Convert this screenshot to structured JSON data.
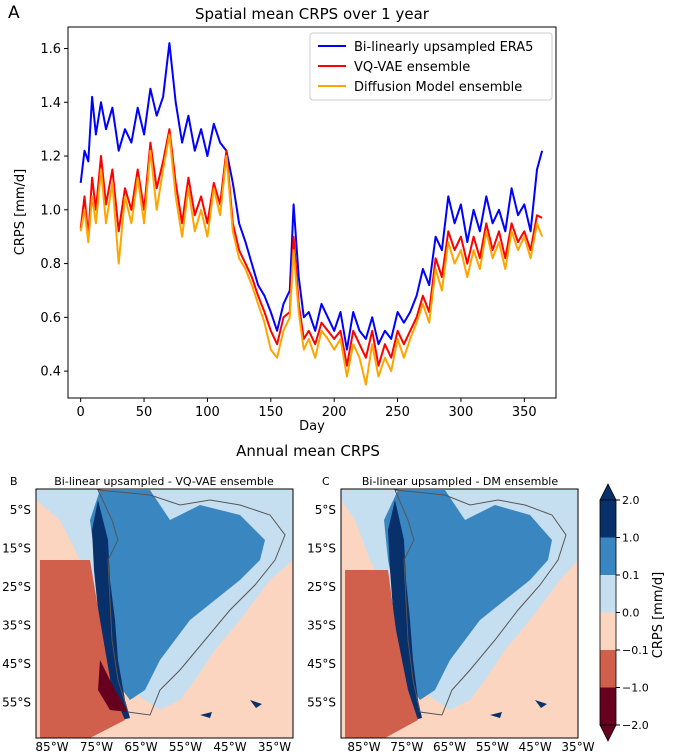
{
  "panel_a": {
    "letter": "A",
    "chart_data": {
      "type": "line",
      "title": "Spatial mean CRPS over 1 year",
      "xlabel": "Day",
      "ylabel": "CRPS [mm/d]",
      "xlim": [
        -10,
        375
      ],
      "ylim": [
        0.3,
        1.68
      ],
      "xticks": [
        0,
        50,
        100,
        150,
        200,
        250,
        300,
        350
      ],
      "yticks": [
        0.4,
        0.6,
        0.8,
        1.0,
        1.2,
        1.4,
        1.6
      ],
      "ytick_labels": [
        "0.4",
        "0.6",
        "0.8",
        "1.0",
        "1.2",
        "1.4",
        "1.6"
      ],
      "legend_position": "top-right",
      "grid": false,
      "series": [
        {
          "name": "Bi-linearly upsampled ERA5",
          "color": "#0000ff",
          "points": [
            [
              0,
              1.1
            ],
            [
              3,
              1.22
            ],
            [
              6,
              1.18
            ],
            [
              9,
              1.42
            ],
            [
              12,
              1.28
            ],
            [
              16,
              1.4
            ],
            [
              20,
              1.3
            ],
            [
              25,
              1.38
            ],
            [
              30,
              1.22
            ],
            [
              35,
              1.3
            ],
            [
              40,
              1.25
            ],
            [
              45,
              1.38
            ],
            [
              50,
              1.28
            ],
            [
              55,
              1.45
            ],
            [
              60,
              1.35
            ],
            [
              65,
              1.42
            ],
            [
              70,
              1.62
            ],
            [
              75,
              1.4
            ],
            [
              80,
              1.25
            ],
            [
              85,
              1.35
            ],
            [
              90,
              1.22
            ],
            [
              95,
              1.3
            ],
            [
              100,
              1.2
            ],
            [
              105,
              1.32
            ],
            [
              110,
              1.25
            ],
            [
              115,
              1.22
            ],
            [
              120,
              1.1
            ],
            [
              125,
              0.95
            ],
            [
              130,
              0.88
            ],
            [
              135,
              0.8
            ],
            [
              140,
              0.72
            ],
            [
              145,
              0.68
            ],
            [
              150,
              0.62
            ],
            [
              155,
              0.55
            ],
            [
              160,
              0.65
            ],
            [
              165,
              0.7
            ],
            [
              168,
              1.02
            ],
            [
              172,
              0.75
            ],
            [
              176,
              0.6
            ],
            [
              180,
              0.62
            ],
            [
              185,
              0.55
            ],
            [
              190,
              0.65
            ],
            [
              195,
              0.6
            ],
            [
              200,
              0.55
            ],
            [
              205,
              0.62
            ],
            [
              210,
              0.48
            ],
            [
              215,
              0.62
            ],
            [
              220,
              0.55
            ],
            [
              225,
              0.52
            ],
            [
              230,
              0.6
            ],
            [
              235,
              0.5
            ],
            [
              240,
              0.55
            ],
            [
              245,
              0.52
            ],
            [
              250,
              0.62
            ],
            [
              255,
              0.58
            ],
            [
              260,
              0.62
            ],
            [
              265,
              0.68
            ],
            [
              270,
              0.78
            ],
            [
              275,
              0.72
            ],
            [
              280,
              0.9
            ],
            [
              285,
              0.85
            ],
            [
              290,
              1.05
            ],
            [
              295,
              0.95
            ],
            [
              300,
              1.02
            ],
            [
              305,
              0.88
            ],
            [
              310,
              1.0
            ],
            [
              315,
              0.92
            ],
            [
              320,
              1.05
            ],
            [
              325,
              0.95
            ],
            [
              330,
              1.0
            ],
            [
              335,
              0.92
            ],
            [
              340,
              1.08
            ],
            [
              345,
              0.98
            ],
            [
              350,
              1.02
            ],
            [
              355,
              0.92
            ],
            [
              360,
              1.15
            ],
            [
              364,
              1.22
            ]
          ]
        },
        {
          "name": "VQ-VAE ensemble",
          "color": "#ff0000",
          "points": [
            [
              0,
              0.93
            ],
            [
              3,
              1.05
            ],
            [
              6,
              0.9
            ],
            [
              9,
              1.12
            ],
            [
              12,
              1.0
            ],
            [
              16,
              1.2
            ],
            [
              20,
              1.02
            ],
            [
              25,
              1.15
            ],
            [
              30,
              0.92
            ],
            [
              35,
              1.08
            ],
            [
              40,
              1.0
            ],
            [
              45,
              1.15
            ],
            [
              50,
              1.0
            ],
            [
              55,
              1.25
            ],
            [
              60,
              1.08
            ],
            [
              65,
              1.18
            ],
            [
              70,
              1.3
            ],
            [
              75,
              1.1
            ],
            [
              80,
              0.95
            ],
            [
              85,
              1.12
            ],
            [
              90,
              0.98
            ],
            [
              95,
              1.05
            ],
            [
              100,
              0.95
            ],
            [
              105,
              1.1
            ],
            [
              110,
              1.02
            ],
            [
              115,
              1.22
            ],
            [
              120,
              0.95
            ],
            [
              125,
              0.85
            ],
            [
              130,
              0.8
            ],
            [
              135,
              0.75
            ],
            [
              140,
              0.68
            ],
            [
              145,
              0.62
            ],
            [
              150,
              0.55
            ],
            [
              155,
              0.5
            ],
            [
              160,
              0.6
            ],
            [
              165,
              0.62
            ],
            [
              168,
              0.9
            ],
            [
              172,
              0.65
            ],
            [
              176,
              0.52
            ],
            [
              180,
              0.55
            ],
            [
              185,
              0.5
            ],
            [
              190,
              0.58
            ],
            [
              195,
              0.55
            ],
            [
              200,
              0.52
            ],
            [
              205,
              0.55
            ],
            [
              210,
              0.42
            ],
            [
              215,
              0.55
            ],
            [
              220,
              0.5
            ],
            [
              225,
              0.45
            ],
            [
              230,
              0.55
            ],
            [
              235,
              0.42
            ],
            [
              240,
              0.5
            ],
            [
              245,
              0.45
            ],
            [
              250,
              0.55
            ],
            [
              255,
              0.5
            ],
            [
              260,
              0.55
            ],
            [
              265,
              0.6
            ],
            [
              270,
              0.68
            ],
            [
              275,
              0.62
            ],
            [
              280,
              0.82
            ],
            [
              285,
              0.75
            ],
            [
              290,
              0.92
            ],
            [
              295,
              0.85
            ],
            [
              300,
              0.9
            ],
            [
              305,
              0.8
            ],
            [
              310,
              0.9
            ],
            [
              315,
              0.82
            ],
            [
              320,
              0.95
            ],
            [
              325,
              0.85
            ],
            [
              330,
              0.92
            ],
            [
              335,
              0.82
            ],
            [
              340,
              0.95
            ],
            [
              345,
              0.88
            ],
            [
              350,
              0.92
            ],
            [
              355,
              0.85
            ],
            [
              360,
              0.98
            ],
            [
              364,
              0.97
            ]
          ]
        },
        {
          "name": "Diffusion Model ensemble",
          "color": "#ffa500",
          "points": [
            [
              0,
              0.92
            ],
            [
              3,
              1.0
            ],
            [
              6,
              0.88
            ],
            [
              9,
              1.05
            ],
            [
              12,
              0.95
            ],
            [
              16,
              1.15
            ],
            [
              20,
              0.95
            ],
            [
              25,
              1.1
            ],
            [
              30,
              0.8
            ],
            [
              35,
              1.05
            ],
            [
              40,
              0.95
            ],
            [
              45,
              1.12
            ],
            [
              50,
              0.95
            ],
            [
              55,
              1.22
            ],
            [
              60,
              1.0
            ],
            [
              65,
              1.15
            ],
            [
              70,
              1.28
            ],
            [
              75,
              1.05
            ],
            [
              80,
              0.9
            ],
            [
              85,
              1.08
            ],
            [
              90,
              0.92
            ],
            [
              95,
              1.0
            ],
            [
              100,
              0.9
            ],
            [
              105,
              1.08
            ],
            [
              110,
              0.98
            ],
            [
              115,
              1.2
            ],
            [
              120,
              0.92
            ],
            [
              125,
              0.82
            ],
            [
              130,
              0.78
            ],
            [
              135,
              0.72
            ],
            [
              140,
              0.65
            ],
            [
              145,
              0.58
            ],
            [
              150,
              0.48
            ],
            [
              155,
              0.45
            ],
            [
              160,
              0.55
            ],
            [
              165,
              0.6
            ],
            [
              168,
              0.85
            ],
            [
              172,
              0.62
            ],
            [
              176,
              0.48
            ],
            [
              180,
              0.52
            ],
            [
              185,
              0.45
            ],
            [
              190,
              0.55
            ],
            [
              195,
              0.52
            ],
            [
              200,
              0.48
            ],
            [
              205,
              0.52
            ],
            [
              210,
              0.38
            ],
            [
              215,
              0.5
            ],
            [
              220,
              0.45
            ],
            [
              225,
              0.35
            ],
            [
              230,
              0.5
            ],
            [
              235,
              0.38
            ],
            [
              240,
              0.45
            ],
            [
              245,
              0.4
            ],
            [
              250,
              0.52
            ],
            [
              255,
              0.45
            ],
            [
              260,
              0.52
            ],
            [
              265,
              0.58
            ],
            [
              270,
              0.65
            ],
            [
              275,
              0.58
            ],
            [
              280,
              0.78
            ],
            [
              285,
              0.7
            ],
            [
              290,
              0.88
            ],
            [
              295,
              0.8
            ],
            [
              300,
              0.85
            ],
            [
              305,
              0.75
            ],
            [
              310,
              0.85
            ],
            [
              315,
              0.78
            ],
            [
              320,
              0.92
            ],
            [
              325,
              0.82
            ],
            [
              330,
              0.88
            ],
            [
              335,
              0.78
            ],
            [
              340,
              0.92
            ],
            [
              345,
              0.85
            ],
            [
              350,
              0.9
            ],
            [
              355,
              0.82
            ],
            [
              360,
              0.95
            ],
            [
              364,
              0.9
            ]
          ]
        }
      ]
    }
  },
  "maps_title": "Annual mean CRPS",
  "panel_b": {
    "letter": "B",
    "title": "Bi-linear upsampled - VQ-VAE ensemble"
  },
  "panel_c": {
    "letter": "C",
    "title": "Bi-linear upsampled - DM ensemble"
  },
  "map_axes": {
    "lat_labels": [
      "5°S",
      "15°S",
      "25°S",
      "35°S",
      "45°S",
      "55°S"
    ],
    "lon_labels": [
      "85°W",
      "75°W",
      "65°W",
      "55°W",
      "45°W",
      "35°W"
    ]
  },
  "colorbar": {
    "label": "CRPS [mm/d]",
    "ticks": [
      "2.0",
      "1.0",
      "0.1",
      "0.0",
      "−0.1",
      "−1.0",
      "−2.0"
    ],
    "bins": [
      {
        "range": "1.0 to 2.0",
        "color": "#08306b"
      },
      {
        "range": "0.1 to 1.0",
        "color": "#3a86c0"
      },
      {
        "range": "0.0 to 0.1",
        "color": "#c6dff0"
      },
      {
        "range": "-0.1 to 0.0",
        "color": "#fbd5c0"
      },
      {
        "range": "-1.0 to -0.1",
        "color": "#d0604c"
      },
      {
        "range": "-2.0 to -1.0",
        "color": "#67001f"
      }
    ]
  }
}
